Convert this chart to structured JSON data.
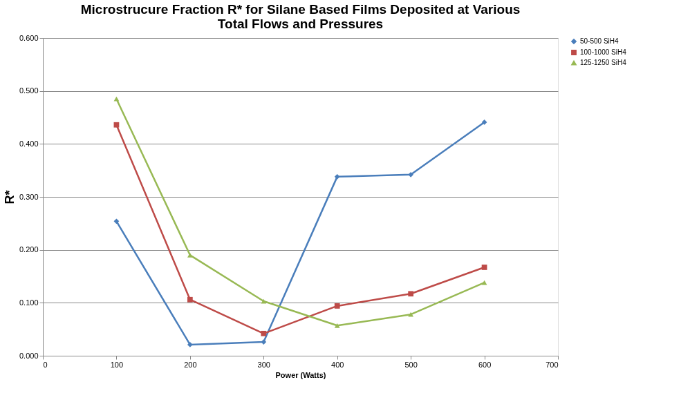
{
  "chart_data": {
    "type": "line",
    "title": "Microstrucure Fraction  R* for Silane Based Films Deposited at Various\nTotal Flows and Pressures",
    "xlabel": "Power (Watts)",
    "ylabel": "R*",
    "x": [
      100,
      200,
      300,
      400,
      500,
      600
    ],
    "series": [
      {
        "name": "50-500 SiH4",
        "color": "#4a7ebb",
        "marker": "diamond",
        "values": [
          0.254,
          0.021,
          0.026,
          0.338,
          0.342,
          0.441
        ]
      },
      {
        "name": "100-1000 SiH4",
        "color": "#be4b48",
        "marker": "square",
        "values": [
          0.436,
          0.106,
          0.042,
          0.094,
          0.117,
          0.167
        ]
      },
      {
        "name": "125-1250 SiH4",
        "color": "#98b954",
        "marker": "triangle",
        "values": [
          0.485,
          0.19,
          0.103,
          0.057,
          0.078,
          0.138
        ]
      }
    ],
    "xlim": [
      0,
      700
    ],
    "xticks": [
      0,
      100,
      200,
      300,
      400,
      500,
      600,
      700
    ],
    "ylim": [
      0,
      0.6
    ],
    "yticks": [
      {
        "value": 0,
        "label": "0.000"
      },
      {
        "value": 0.1,
        "label": "0.100"
      },
      {
        "value": 0.2,
        "label": "0.200"
      },
      {
        "value": 0.3,
        "label": "0.300"
      },
      {
        "value": 0.4,
        "label": "0.400"
      },
      {
        "value": 0.5,
        "label": "0.500"
      },
      {
        "value": 0.6,
        "label": "0.600"
      }
    ],
    "grid": "y",
    "legend": "right",
    "line_style": "solid"
  }
}
